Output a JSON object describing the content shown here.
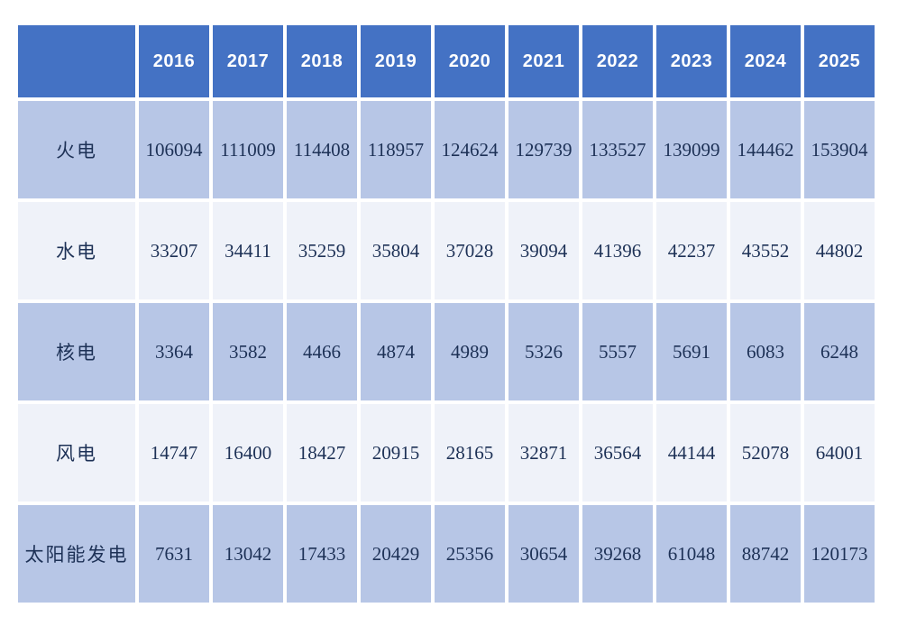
{
  "colors": {
    "header_bg": "#4472C4",
    "row_dark_bg": "#B7C6E6",
    "row_light_bg": "#EFF2F9",
    "header_text": "#FFFFFF",
    "cell_text": "#1D3156",
    "grid_gap": "#FFFFFF"
  },
  "chart_data": {
    "type": "table",
    "title": "",
    "corner_label": "",
    "categories": [
      "2016",
      "2017",
      "2018",
      "2019",
      "2020",
      "2021",
      "2022",
      "2023",
      "2024",
      "2025"
    ],
    "series": [
      {
        "name": "火电",
        "values": [
          106094,
          111009,
          114408,
          118957,
          124624,
          129739,
          133527,
          139099,
          144462,
          153904
        ]
      },
      {
        "name": "水电",
        "values": [
          33207,
          34411,
          35259,
          35804,
          37028,
          39094,
          41396,
          42237,
          43552,
          44802
        ]
      },
      {
        "name": "核电",
        "values": [
          3364,
          3582,
          4466,
          4874,
          4989,
          5326,
          5557,
          5691,
          6083,
          6248
        ]
      },
      {
        "name": "风电",
        "values": [
          14747,
          16400,
          18427,
          20915,
          28165,
          32871,
          36564,
          44144,
          52078,
          64001
        ]
      },
      {
        "name": "太阳能发电",
        "values": [
          7631,
          13042,
          17433,
          20429,
          25356,
          30654,
          39268,
          61048,
          88742,
          120173
        ]
      }
    ],
    "layout": {
      "rows_alternate_shading": true,
      "grid": "white gaps between cells",
      "header_position": "top"
    }
  }
}
